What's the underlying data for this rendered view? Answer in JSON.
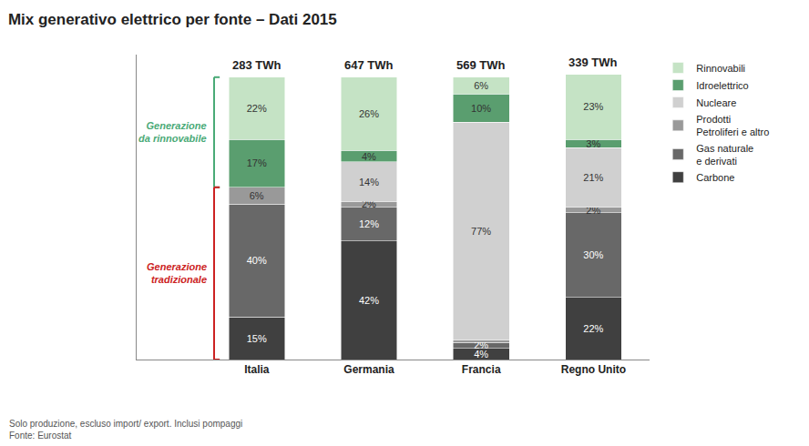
{
  "chart_data": {
    "type": "bar",
    "title": "Mix generativo elettrico per fonte – Dati 2015",
    "footnote": "Solo produzione, escluso import/ export. Inclusi pompaggi\nFonte: Eurostat",
    "categories": [
      "Italia",
      "Germania",
      "Francia",
      "Regno Unito"
    ],
    "series": [
      {
        "name": "Carbone",
        "color": "#404040",
        "values": [
          15,
          42,
          4,
          22
        ],
        "value_labels": [
          "15%",
          "42%",
          "4%",
          "22%"
        ]
      },
      {
        "name": "Gas naturale\ne derivati",
        "color": "#686868",
        "values": [
          40,
          12,
          2,
          30
        ],
        "value_labels": [
          "40%",
          "12%",
          "2%",
          "30%"
        ]
      },
      {
        "name": "Prodotti\nPetroliferi e altro",
        "color": "#999999",
        "values": [
          6,
          2,
          1,
          2
        ],
        "value_labels": [
          "6%",
          "2%",
          null,
          "2%"
        ]
      },
      {
        "name": "Nucleare",
        "color": "#d0d0d0",
        "values": [
          0,
          14,
          77,
          21
        ],
        "value_labels": [
          null,
          "14%",
          "77%",
          "21%"
        ]
      },
      {
        "name": "Idroelettrico",
        "color": "#5a9e6f",
        "values": [
          17,
          4,
          10,
          3
        ],
        "value_labels": [
          "17%",
          "4%",
          "10%",
          "3%"
        ]
      },
      {
        "name": "Rinnovabili",
        "color": "#c5e3c5",
        "values": [
          22,
          26,
          6,
          23
        ],
        "value_labels": [
          "22%",
          "26%",
          "6%",
          "23%"
        ]
      }
    ],
    "annotations": [
      {
        "category": "Italia",
        "text": "283 TWh"
      },
      {
        "category": "Germania",
        "text": "647 TWh"
      },
      {
        "category": "Francia",
        "text": "569 TWh"
      },
      {
        "category": "Regno Unito",
        "text": "339 TWh"
      },
      {
        "category": "Italia",
        "text": "Generazione\nda rinnovabile",
        "color": "#4aaa77",
        "y": [
          61,
          100
        ]
      },
      {
        "category": "Italia",
        "text": "Generazione\ntradizionale",
        "color": "#cc2222",
        "y": [
          0,
          61
        ]
      }
    ],
    "stacked": true,
    "data_labels": true,
    "ylim": [
      0,
      108
    ],
    "tick_labels": "x",
    "grid": false,
    "legend": "right"
  }
}
